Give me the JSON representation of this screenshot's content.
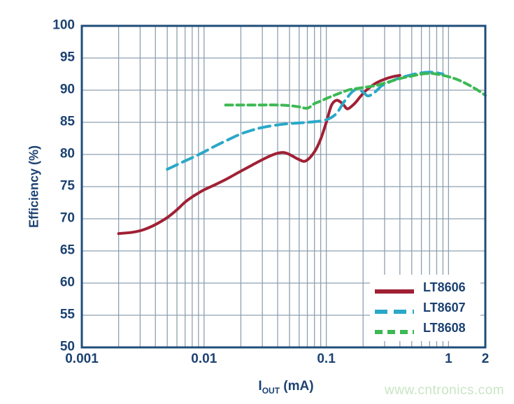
{
  "page": {
    "watermark": "www.cntronics.com"
  },
  "chart_data": {
    "type": "line",
    "title": "",
    "xlabel": "IOUT (mA)",
    "xlabel_parts": {
      "main": "I",
      "sub": "OUT",
      "unit": " (mA)"
    },
    "ylabel": "Efficiency (%)",
    "x_scale": "log",
    "xlim": [
      0.001,
      2
    ],
    "ylim": [
      50,
      100
    ],
    "grid": {
      "on": true,
      "color": "#8da0b0",
      "frame_color": "#1f4e7a"
    },
    "legend_position": "bottom-right",
    "x_ticks": [
      {
        "value": 0.001,
        "label": "0.001"
      },
      {
        "value": 0.01,
        "label": "0.01"
      },
      {
        "value": 0.1,
        "label": "0.1"
      },
      {
        "value": 1,
        "label": "1"
      },
      {
        "value": 2,
        "label": "2"
      }
    ],
    "y_ticks": [
      {
        "value": 50,
        "label": "50"
      },
      {
        "value": 55,
        "label": "55"
      },
      {
        "value": 60,
        "label": "60"
      },
      {
        "value": 65,
        "label": "65"
      },
      {
        "value": 70,
        "label": "70"
      },
      {
        "value": 75,
        "label": "75"
      },
      {
        "value": 80,
        "label": "80"
      },
      {
        "value": 85,
        "label": "85"
      },
      {
        "value": 90,
        "label": "90"
      },
      {
        "value": 95,
        "label": "95"
      },
      {
        "value": 100,
        "label": "100"
      }
    ],
    "series": [
      {
        "name": "LT8606",
        "color": "#a02035",
        "dash": "solid",
        "points": [
          [
            0.002,
            67.7
          ],
          [
            0.0026,
            67.9
          ],
          [
            0.0032,
            68.3
          ],
          [
            0.004,
            69.1
          ],
          [
            0.005,
            70.2
          ],
          [
            0.006,
            71.4
          ],
          [
            0.007,
            72.6
          ],
          [
            0.008,
            73.4
          ],
          [
            0.009,
            74.0
          ],
          [
            0.01,
            74.5
          ],
          [
            0.012,
            75.2
          ],
          [
            0.015,
            76.1
          ],
          [
            0.02,
            77.4
          ],
          [
            0.025,
            78.4
          ],
          [
            0.03,
            79.2
          ],
          [
            0.035,
            79.8
          ],
          [
            0.04,
            80.2
          ],
          [
            0.045,
            80.3
          ],
          [
            0.05,
            80.0
          ],
          [
            0.06,
            79.2
          ],
          [
            0.068,
            79.0
          ],
          [
            0.08,
            80.4
          ],
          [
            0.09,
            82.4
          ],
          [
            0.1,
            85.0
          ],
          [
            0.11,
            87.6
          ],
          [
            0.12,
            88.4
          ],
          [
            0.13,
            88.2
          ],
          [
            0.14,
            87.6
          ],
          [
            0.15,
            87.1
          ],
          [
            0.17,
            87.9
          ],
          [
            0.19,
            89.0
          ],
          [
            0.21,
            89.9
          ],
          [
            0.25,
            91.0
          ],
          [
            0.3,
            91.7
          ],
          [
            0.35,
            92.1
          ],
          [
            0.4,
            92.3
          ]
        ]
      },
      {
        "name": "LT8607",
        "color": "#2aa8c8",
        "dash": "long-dash",
        "points": [
          [
            0.005,
            77.7
          ],
          [
            0.006,
            78.4
          ],
          [
            0.007,
            79.0
          ],
          [
            0.008,
            79.5
          ],
          [
            0.01,
            80.4
          ],
          [
            0.012,
            81.2
          ],
          [
            0.015,
            82.1
          ],
          [
            0.02,
            83.2
          ],
          [
            0.025,
            83.8
          ],
          [
            0.03,
            84.2
          ],
          [
            0.04,
            84.6
          ],
          [
            0.05,
            84.8
          ],
          [
            0.06,
            84.9
          ],
          [
            0.07,
            85.0
          ],
          [
            0.08,
            85.1
          ],
          [
            0.1,
            85.4
          ],
          [
            0.12,
            86.3
          ],
          [
            0.14,
            88.2
          ],
          [
            0.16,
            89.6
          ],
          [
            0.17,
            90.0
          ],
          [
            0.18,
            90.2
          ],
          [
            0.2,
            89.7
          ],
          [
            0.22,
            89.1
          ],
          [
            0.25,
            89.7
          ],
          [
            0.28,
            90.6
          ],
          [
            0.3,
            90.9
          ],
          [
            0.35,
            91.5
          ],
          [
            0.4,
            91.9
          ],
          [
            0.5,
            92.4
          ],
          [
            0.6,
            92.7
          ],
          [
            0.7,
            92.8
          ],
          [
            0.8,
            92.7
          ],
          [
            0.9,
            92.5
          ]
        ]
      },
      {
        "name": "LT8608",
        "color": "#3db853",
        "dash": "short-dash",
        "points": [
          [
            0.015,
            87.7
          ],
          [
            0.02,
            87.7
          ],
          [
            0.03,
            87.7
          ],
          [
            0.04,
            87.7
          ],
          [
            0.05,
            87.6
          ],
          [
            0.06,
            87.4
          ],
          [
            0.07,
            87.2
          ],
          [
            0.08,
            87.9
          ],
          [
            0.09,
            88.3
          ],
          [
            0.1,
            88.7
          ],
          [
            0.12,
            89.3
          ],
          [
            0.15,
            90.0
          ],
          [
            0.17,
            90.2
          ],
          [
            0.2,
            90.4
          ],
          [
            0.25,
            90.7
          ],
          [
            0.3,
            91.1
          ],
          [
            0.4,
            91.8
          ],
          [
            0.5,
            92.2
          ],
          [
            0.6,
            92.5
          ],
          [
            0.7,
            92.6
          ],
          [
            0.8,
            92.5
          ],
          [
            1.0,
            92.1
          ],
          [
            1.2,
            91.6
          ],
          [
            1.4,
            91.0
          ],
          [
            1.6,
            90.4
          ],
          [
            1.8,
            89.8
          ],
          [
            2.0,
            89.2
          ]
        ]
      }
    ]
  }
}
